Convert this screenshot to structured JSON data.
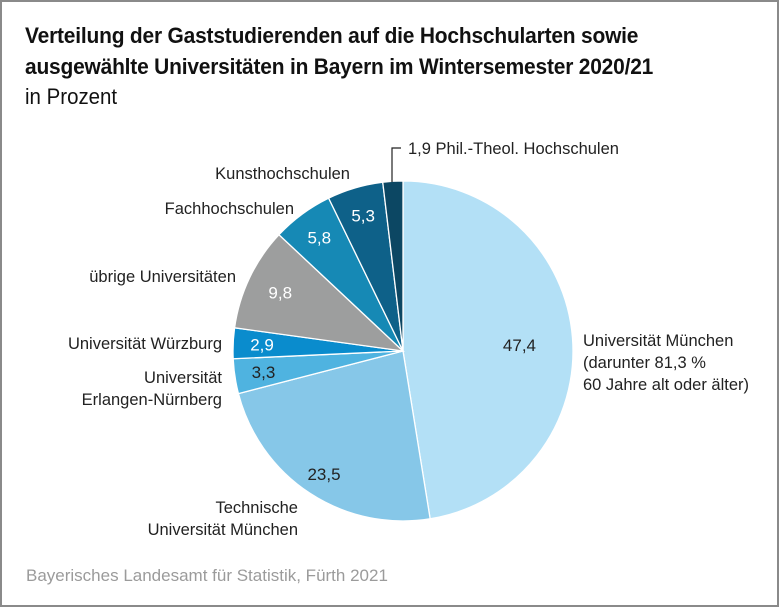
{
  "title_line1": "Verteilung der Gaststudierenden auf die Hochschularten sowie",
  "title_line2": "ausgewählte Universitäten in Bayern im Wintersemester 2020/21",
  "subtitle": "in Prozent",
  "source": "Bayerisches Landesamt für Statistik, Fürth 2021",
  "chart_data": {
    "type": "pie",
    "title": "Verteilung der Gaststudierenden auf die Hochschularten sowie ausgewählte Universitäten in Bayern im Wintersemester 2020/21",
    "subtitle": "in Prozent",
    "unit": "%",
    "start": "top",
    "direction": "clockwise",
    "slices": [
      {
        "label": "Universität München (darunter 81,3 % 60 Jahre alt oder älter)",
        "label_lines": [
          "Universität München",
          "(darunter 81,3 %",
          "60 Jahre alt oder älter)"
        ],
        "value": 47.4,
        "value_label": "47,4",
        "color": "#b3e0f6",
        "value_color": "#222222"
      },
      {
        "label": "Technische Universität München",
        "label_lines": [
          "Technische",
          "Universität München"
        ],
        "value": 23.5,
        "value_label": "23,5",
        "color": "#86c7e8",
        "value_color": "#222222"
      },
      {
        "label": "Universität Erlangen-Nürnberg",
        "label_lines": [
          "Universität",
          "Erlangen-Nürnberg"
        ],
        "value": 3.3,
        "value_label": "3,3",
        "color": "#4fb3e0",
        "value_color": "#222222"
      },
      {
        "label": "Universität Würzburg",
        "label_lines": [
          "Universität Würzburg"
        ],
        "value": 2.9,
        "value_label": "2,9",
        "color": "#0a8ccd",
        "value_color": "#ffffff"
      },
      {
        "label": "übrige Universitäten",
        "label_lines": [
          "übrige Universitäten"
        ],
        "value": 9.8,
        "value_label": "9,8",
        "color": "#9d9e9e",
        "value_color": "#ffffff"
      },
      {
        "label": "Fachhochschulen",
        "label_lines": [
          "Fachhochschulen"
        ],
        "value": 5.8,
        "value_label": "5,8",
        "color": "#1689b5",
        "value_color": "#ffffff"
      },
      {
        "label": "Kunsthochschulen",
        "label_lines": [
          "Kunsthochschulen"
        ],
        "value": 5.3,
        "value_label": "5,3",
        "color": "#0e6189",
        "value_color": "#ffffff"
      },
      {
        "label": "Phil.-Theol. Hochschulen",
        "label_lines": [
          "1,9 Phil.-Theol. Hochschulen"
        ],
        "value": 1.9,
        "value_label": "1,9",
        "color": "#0c4763",
        "value_color": "#222222"
      }
    ],
    "legend": "none (direct labels)"
  }
}
